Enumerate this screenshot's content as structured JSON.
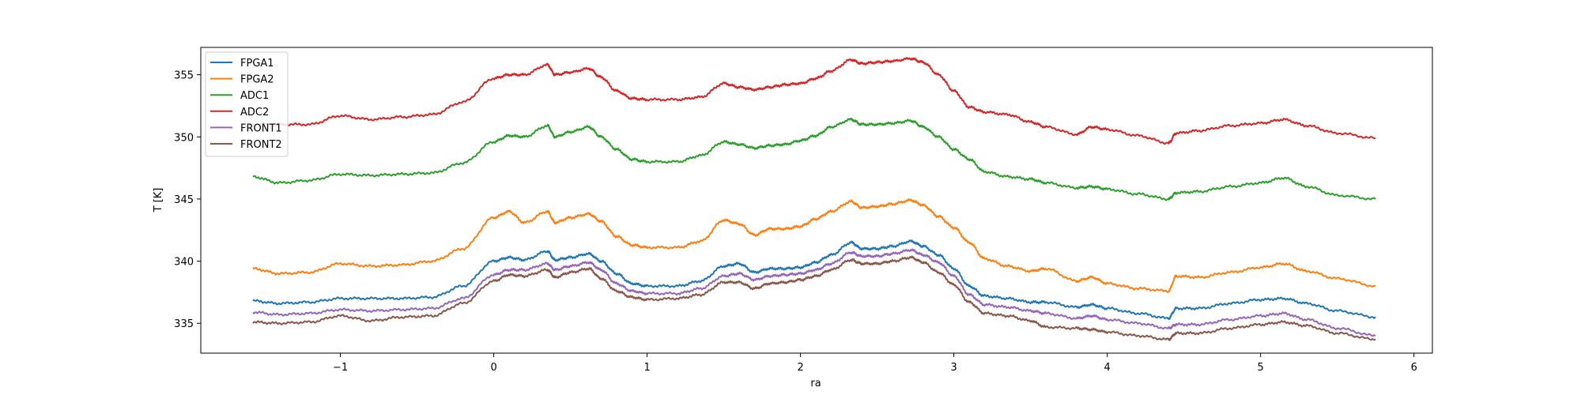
{
  "chart_data": {
    "type": "line",
    "title": "",
    "xlabel": "ra",
    "ylabel": "T [K]",
    "xlim": [
      -1.91,
      6.12
    ],
    "ylim": [
      332.6,
      357.2
    ],
    "xticks": [
      -1,
      0,
      1,
      2,
      3,
      4,
      5,
      6
    ],
    "yticks": [
      335,
      340,
      345,
      350,
      355
    ],
    "x_tick_labels": [
      "−1",
      "0",
      "1",
      "2",
      "3",
      "4",
      "5",
      "6"
    ],
    "y_tick_labels": [
      "335",
      "340",
      "345",
      "350",
      "355"
    ],
    "grid": false,
    "legend_position": "top-left",
    "x": [
      -1.57,
      -1.4,
      -1.2,
      -1.0,
      -0.8,
      -0.6,
      -0.4,
      -0.2,
      0.0,
      0.1,
      0.2,
      0.35,
      0.4,
      0.5,
      0.62,
      0.7,
      0.8,
      0.9,
      1.0,
      1.2,
      1.35,
      1.5,
      1.6,
      1.7,
      1.8,
      1.9,
      2.0,
      2.1,
      2.2,
      2.33,
      2.4,
      2.5,
      2.6,
      2.72,
      2.8,
      2.9,
      3.0,
      3.1,
      3.2,
      3.35,
      3.5,
      3.6,
      3.8,
      3.9,
      4.0,
      4.2,
      4.4,
      4.45,
      4.6,
      4.8,
      5.0,
      5.15,
      5.3,
      5.5,
      5.75
    ],
    "series": [
      {
        "name": "FPGA1",
        "color": "#1f77b4",
        "values": [
          336.8,
          336.6,
          336.7,
          337.0,
          337.0,
          337.0,
          337.1,
          338.0,
          340.0,
          340.3,
          340.1,
          340.8,
          340.1,
          340.3,
          340.6,
          340.0,
          339.0,
          338.2,
          338.0,
          338.0,
          338.4,
          339.6,
          339.8,
          339.1,
          339.4,
          339.4,
          339.5,
          339.9,
          340.5,
          341.5,
          341.0,
          341.0,
          341.2,
          341.6,
          341.2,
          340.5,
          339.4,
          338.0,
          337.2,
          337.0,
          336.7,
          336.7,
          336.3,
          336.5,
          336.2,
          335.8,
          335.4,
          336.2,
          336.2,
          336.6,
          336.9,
          337.0,
          336.6,
          336.0,
          335.5
        ]
      },
      {
        "name": "FPGA2",
        "color": "#ff7f0e",
        "values": [
          339.4,
          339.0,
          339.1,
          339.8,
          339.6,
          339.7,
          340.0,
          341.0,
          343.5,
          344.0,
          343.1,
          344.0,
          343.1,
          343.5,
          343.8,
          343.2,
          342.0,
          341.3,
          341.1,
          341.1,
          341.6,
          343.3,
          343.0,
          342.1,
          342.6,
          342.6,
          342.8,
          343.4,
          344.0,
          344.8,
          344.3,
          344.4,
          344.6,
          344.9,
          344.5,
          343.6,
          342.7,
          341.5,
          340.2,
          339.6,
          339.2,
          339.4,
          338.4,
          338.7,
          338.2,
          337.8,
          337.6,
          338.8,
          338.7,
          339.1,
          339.5,
          339.8,
          339.2,
          338.6,
          338.0
        ]
      },
      {
        "name": "ADC1",
        "color": "#2ca02c",
        "values": [
          346.8,
          346.3,
          346.5,
          347.0,
          346.9,
          347.0,
          347.1,
          347.9,
          349.6,
          350.1,
          350.0,
          350.9,
          350.0,
          350.4,
          350.8,
          350.0,
          349.0,
          348.2,
          348.0,
          348.0,
          348.5,
          349.6,
          349.4,
          349.1,
          349.3,
          349.4,
          349.7,
          350.1,
          350.8,
          351.4,
          351.0,
          351.0,
          351.1,
          351.3,
          350.8,
          350.0,
          349.0,
          348.2,
          347.2,
          346.8,
          346.6,
          346.3,
          345.9,
          346.0,
          345.8,
          345.4,
          345.0,
          345.5,
          345.6,
          346.0,
          346.3,
          346.7,
          346.0,
          345.3,
          345.0
        ]
      },
      {
        "name": "ADC2",
        "color": "#d62728",
        "values": [
          351.0,
          351.0,
          351.0,
          351.7,
          351.4,
          351.6,
          351.8,
          352.8,
          354.7,
          355.0,
          355.0,
          355.8,
          355.0,
          355.2,
          355.5,
          354.8,
          353.7,
          353.1,
          353.0,
          353.0,
          353.2,
          354.3,
          354.0,
          353.8,
          354.0,
          354.2,
          354.3,
          354.7,
          355.3,
          356.2,
          355.9,
          356.0,
          356.1,
          356.3,
          356.0,
          355.0,
          353.7,
          352.4,
          352.0,
          351.8,
          351.2,
          350.8,
          350.2,
          350.8,
          350.6,
          350.1,
          349.5,
          350.3,
          350.5,
          350.9,
          351.1,
          351.4,
          350.9,
          350.3,
          349.9
        ]
      },
      {
        "name": "FRONT1",
        "color": "#9467bd",
        "values": [
          335.9,
          335.7,
          335.8,
          336.1,
          336.0,
          336.1,
          336.2,
          337.0,
          338.9,
          339.3,
          339.3,
          339.8,
          339.3,
          339.6,
          339.9,
          339.3,
          338.2,
          337.6,
          337.4,
          337.4,
          337.8,
          338.8,
          339.0,
          338.5,
          338.8,
          338.9,
          339.0,
          339.3,
          339.8,
          340.7,
          340.4,
          340.4,
          340.6,
          340.9,
          340.5,
          339.9,
          338.8,
          337.3,
          336.5,
          336.3,
          336.0,
          335.8,
          335.4,
          335.6,
          335.3,
          335.0,
          334.6,
          334.9,
          334.9,
          335.3,
          335.6,
          335.8,
          335.3,
          334.6,
          334.0
        ]
      },
      {
        "name": "FRONT2",
        "color": "#8c564b",
        "values": [
          335.1,
          335.0,
          335.1,
          335.6,
          335.2,
          335.5,
          335.6,
          336.6,
          338.4,
          338.9,
          338.8,
          339.3,
          338.7,
          339.1,
          339.4,
          338.6,
          337.6,
          337.1,
          336.9,
          337.0,
          337.3,
          338.3,
          338.3,
          337.8,
          338.2,
          338.3,
          338.5,
          338.8,
          339.3,
          340.1,
          339.8,
          339.8,
          340.0,
          340.3,
          339.9,
          339.1,
          338.1,
          336.7,
          335.8,
          335.6,
          335.2,
          334.7,
          334.6,
          334.5,
          334.3,
          334.0,
          333.7,
          334.2,
          334.2,
          334.6,
          334.9,
          335.1,
          334.8,
          334.2,
          333.7
        ]
      }
    ]
  }
}
